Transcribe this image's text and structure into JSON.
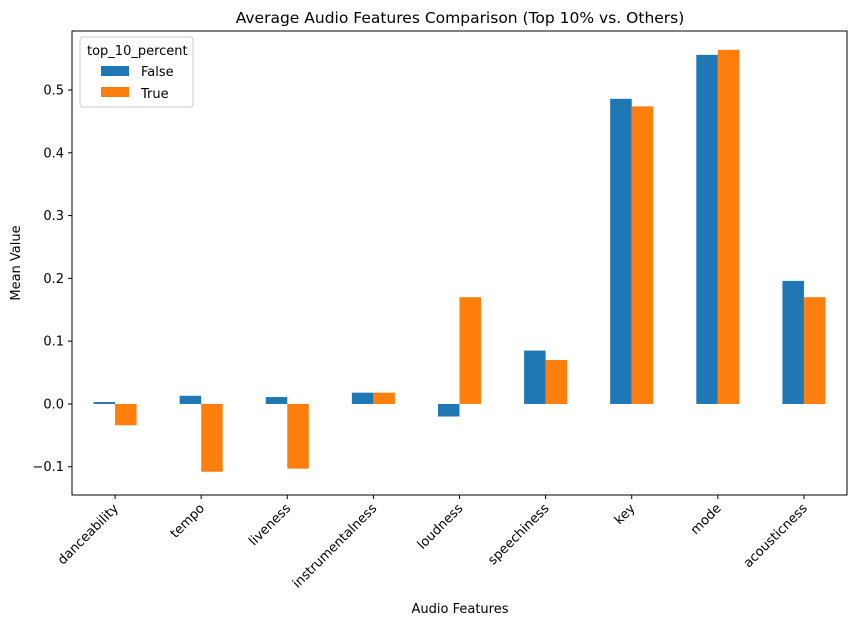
{
  "chart_data": {
    "type": "bar",
    "title": "Average Audio Features Comparison (Top 10% vs. Others)",
    "xlabel": "Audio Features",
    "ylabel": "Mean Value",
    "categories": [
      "danceability",
      "tempo",
      "liveness",
      "instrumentalness",
      "loudness",
      "speechiness",
      "key",
      "mode",
      "acousticness"
    ],
    "series": [
      {
        "name": "False",
        "color": "#1f77b4",
        "values": [
          0.003,
          0.013,
          0.011,
          0.018,
          -0.02,
          0.085,
          0.486,
          0.556,
          0.196
        ]
      },
      {
        "name": "True",
        "color": "#ff7f0e",
        "values": [
          -0.034,
          -0.108,
          -0.103,
          0.018,
          0.17,
          0.07,
          0.474,
          0.564,
          0.17
        ]
      }
    ],
    "ylim": [
      -0.145,
      0.594
    ],
    "yticks": [
      -0.1,
      0.0,
      0.1,
      0.2,
      0.3,
      0.4,
      0.5
    ],
    "ytick_labels": [
      "−0.1",
      "0.0",
      "0.1",
      "0.2",
      "0.3",
      "0.4",
      "0.5"
    ],
    "grid": false,
    "legend": {
      "title": "top_10_percent",
      "position": "top-left"
    }
  }
}
